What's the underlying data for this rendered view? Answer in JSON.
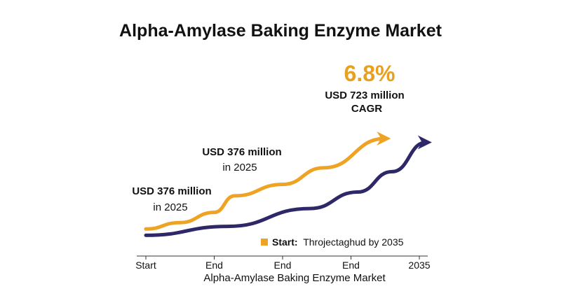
{
  "chart_data": {
    "type": "line",
    "title": "Alpha-Amylase Baking Enzyme Market",
    "xlabel": "Alpha-Amylase Baking Enzyme Market",
    "ylabel": "",
    "x_tick_labels": [
      "Start",
      "End",
      "End",
      "End",
      "2035"
    ],
    "ylim": [
      0,
      100
    ],
    "series": [
      {
        "color": "#eea325",
        "x": [
          0,
          0.5,
          1.0,
          1.3,
          2.0,
          2.6,
          3.5
        ],
        "y": [
          7,
          12,
          20,
          33,
          42,
          55,
          78
        ]
      },
      {
        "color": "#2e2868",
        "x": [
          0,
          1.2,
          2.4,
          3.1,
          3.6,
          4.1
        ],
        "y": [
          2,
          9,
          23,
          36,
          52,
          75
        ]
      }
    ],
    "annotations": {
      "cagr_value": "6.8%",
      "end_value": "USD 723 million",
      "cagr_label": "CAGR",
      "mid_value": "USD 376 million",
      "mid_year": "in 2025",
      "start_value": "USD 376 million",
      "start_year": "in 2025"
    },
    "legend": {
      "color": "#eea325",
      "prefix": "Start:",
      "text": "Throjectaghud by 2035",
      "position": "bottom-right"
    }
  }
}
